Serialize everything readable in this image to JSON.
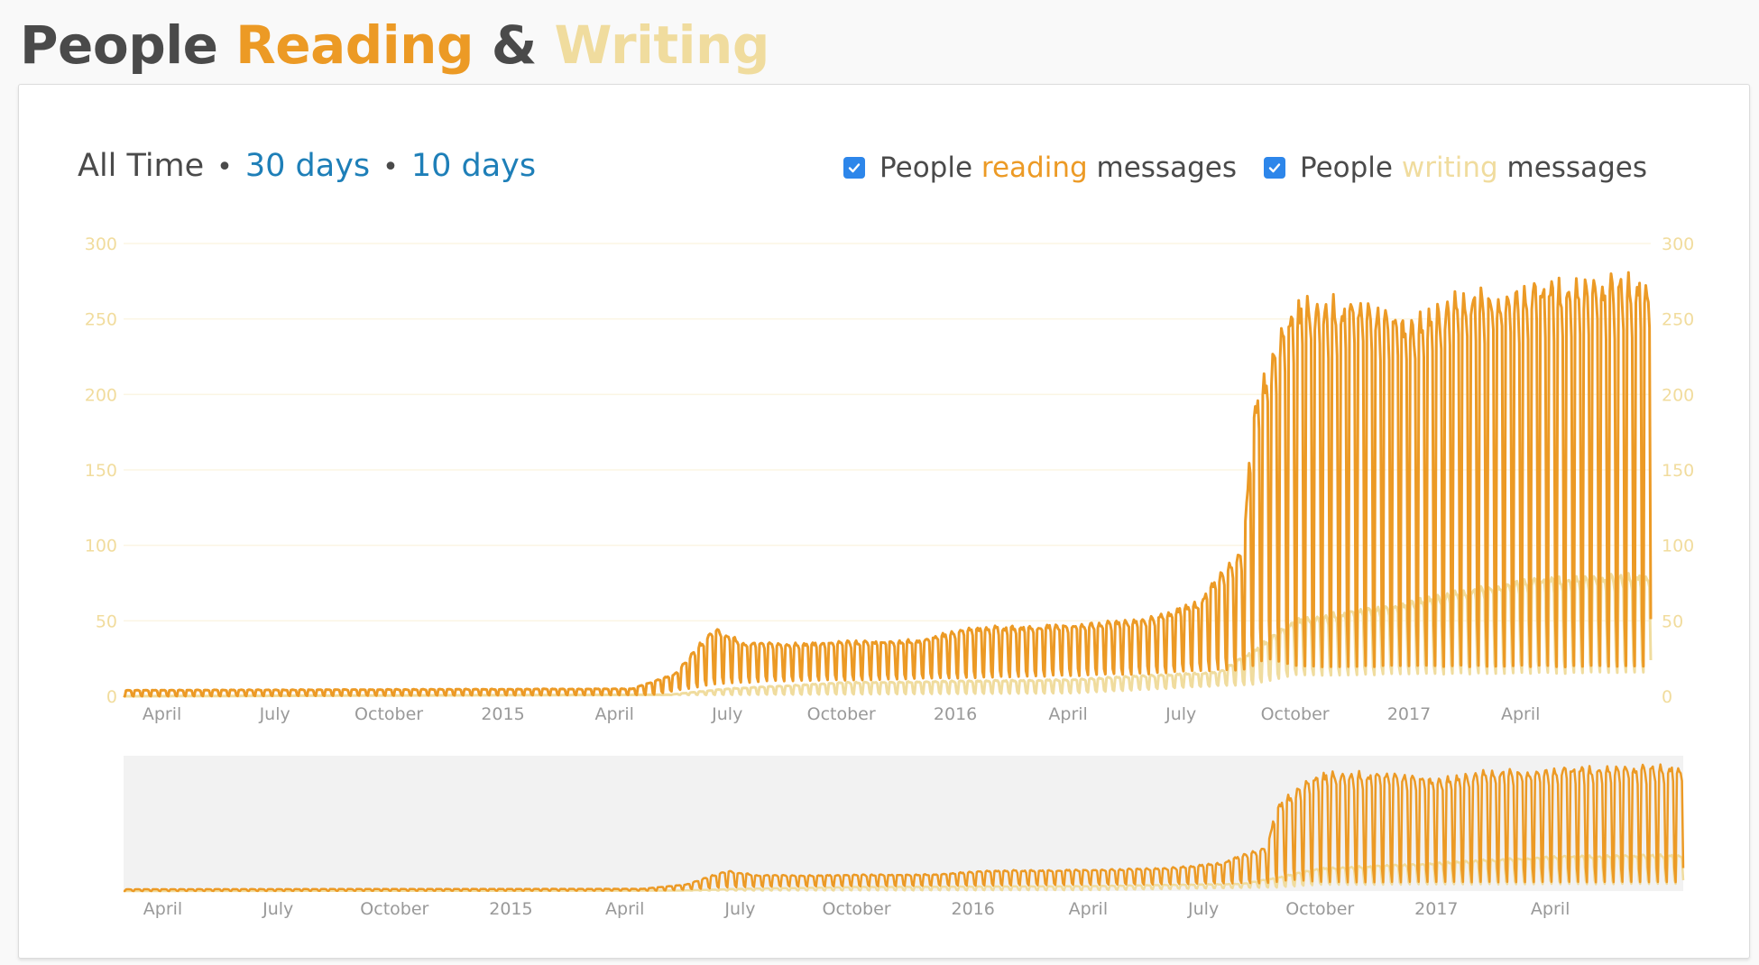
{
  "title": {
    "part1": "People",
    "part2": "Reading",
    "part3": "&",
    "part4": "Writing"
  },
  "colors": {
    "reading": "#ec9a25",
    "writing": "#f0dc9e",
    "link": "#1e7fb8",
    "checkbox": "#2d86ea",
    "axis_label": "#f1dc9d",
    "tick_label": "#999999",
    "navigator_bg": "#f2f2f2"
  },
  "range_nav": {
    "active": "All Time",
    "options": [
      "30 days",
      "10 days"
    ]
  },
  "legend": {
    "reading": {
      "pre": "People",
      "highlight": "reading",
      "post": "messages",
      "checked": true
    },
    "writing": {
      "pre": "People",
      "highlight": "writing",
      "post": "messages",
      "checked": true
    }
  },
  "chart_data": {
    "type": "line",
    "x_start": "2014-03-01",
    "x_end": "2017-07-15",
    "ylim": [
      0,
      300
    ],
    "yticks_left": [
      "0",
      "50",
      "100",
      "150",
      "200",
      "250",
      "300"
    ],
    "yticks_right": [
      "0",
      "50",
      "100",
      "150",
      "200",
      "250",
      "300"
    ],
    "x_ticks": [
      "April",
      "July",
      "October",
      "2015",
      "April",
      "July",
      "October",
      "2016",
      "April",
      "July",
      "October",
      "2017",
      "April"
    ],
    "x_tick_dates": [
      "2014-04-01",
      "2014-07-01",
      "2014-10-01",
      "2015-01-01",
      "2015-04-01",
      "2015-07-01",
      "2015-10-01",
      "2016-01-01",
      "2016-04-01",
      "2016-07-01",
      "2016-10-01",
      "2017-01-01",
      "2017-04-01"
    ],
    "series": [
      {
        "name": "People reading messages",
        "key": "reading",
        "weekday_peaks": [
          [
            "2014-03-01",
            4
          ],
          [
            "2015-04-15",
            5
          ],
          [
            "2015-05-20",
            15
          ],
          [
            "2015-06-20",
            45
          ],
          [
            "2015-07-15",
            35
          ],
          [
            "2015-09-01",
            35
          ],
          [
            "2015-12-01",
            37
          ],
          [
            "2016-01-15",
            45
          ],
          [
            "2016-04-01",
            47
          ],
          [
            "2016-06-01",
            50
          ],
          [
            "2016-07-15",
            62
          ],
          [
            "2016-08-01",
            80
          ],
          [
            "2016-08-20",
            95
          ],
          [
            "2016-08-28",
            192
          ],
          [
            "2016-09-10",
            215
          ],
          [
            "2016-09-25",
            250
          ],
          [
            "2016-10-10",
            260
          ],
          [
            "2016-11-20",
            258
          ],
          [
            "2016-12-20",
            255
          ],
          [
            "2017-01-01",
            245
          ],
          [
            "2017-02-15",
            265
          ],
          [
            "2017-03-15",
            268
          ],
          [
            "2017-04-15",
            272
          ],
          [
            "2017-05-15",
            273
          ],
          [
            "2017-07-10",
            275
          ]
        ],
        "weekend_troughs": [
          [
            "2014-03-01",
            0
          ],
          [
            "2015-05-01",
            1
          ],
          [
            "2015-06-20",
            8
          ],
          [
            "2015-08-01",
            10
          ],
          [
            "2016-01-01",
            12
          ],
          [
            "2016-06-01",
            15
          ],
          [
            "2016-08-20",
            18
          ],
          [
            "2016-09-10",
            25
          ],
          [
            "2016-10-01",
            20
          ],
          [
            "2017-07-10",
            20
          ]
        ]
      },
      {
        "name": "People writing messages",
        "key": "writing",
        "weekday_peaks": [
          [
            "2014-03-01",
            0
          ],
          [
            "2015-05-15",
            1
          ],
          [
            "2015-07-01",
            5
          ],
          [
            "2015-10-01",
            9
          ],
          [
            "2016-04-01",
            11
          ],
          [
            "2016-08-01",
            16
          ],
          [
            "2016-08-28",
            30
          ],
          [
            "2016-10-01",
            50
          ],
          [
            "2017-01-01",
            62
          ],
          [
            "2017-04-01",
            77
          ],
          [
            "2017-07-10",
            80
          ]
        ],
        "weekend_troughs": [
          [
            "2014-03-01",
            0
          ],
          [
            "2015-07-01",
            1
          ],
          [
            "2016-04-01",
            2
          ],
          [
            "2016-08-28",
            8
          ],
          [
            "2016-10-01",
            14
          ],
          [
            "2017-07-10",
            16
          ]
        ]
      }
    ],
    "navigator": {
      "x_ticks": [
        "April",
        "July",
        "October",
        "2015",
        "April",
        "July",
        "October",
        "2016",
        "April",
        "July",
        "October",
        "2017",
        "April"
      ],
      "ylim": [
        0,
        300
      ]
    }
  }
}
